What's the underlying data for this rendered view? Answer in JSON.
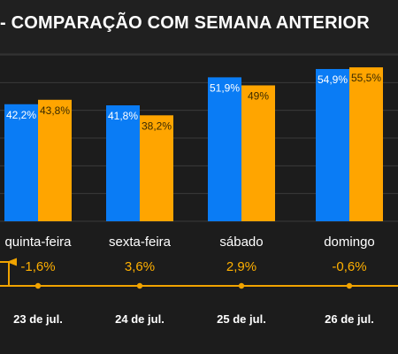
{
  "header": {
    "title": "- COMPARAÇÃO COM SEMANA ANTERIOR"
  },
  "colors": {
    "background": "#1c1c1c",
    "current_week": "#0a7cf5",
    "previous_week": "#ffa500",
    "gridline": "#3a3a3a",
    "variation_line": "#f0a300",
    "text": "#ffffff",
    "variation_text": "#ffb000"
  },
  "chart_data": {
    "type": "bar",
    "title": "- COMPARAÇÃO COM SEMANA ANTERIOR",
    "categories": [
      "quinta-feira",
      "sexta-feira",
      "sábado",
      "domingo"
    ],
    "series": [
      {
        "values": [
          42.2,
          41.8,
          51.9,
          54.9
        ],
        "labels": [
          "42,2%",
          "41,8%",
          "51,9%",
          "54,9%"
        ],
        "color": "#0a7cf5"
      },
      {
        "values": [
          43.8,
          38.2,
          49,
          55.5
        ],
        "labels": [
          "43,8%",
          "38,2%",
          "49%",
          "55,5%"
        ],
        "color": "#ffa500"
      }
    ],
    "variation": {
      "labels": [
        "-1,6%",
        "3,6%",
        "2,9%",
        "-0,6%"
      ],
      "values": [
        -1.6,
        3.6,
        2.9,
        -0.6
      ]
    },
    "dates": [
      "23 de jul.",
      "24 de jul.",
      "25 de jul.",
      "26 de jul."
    ],
    "ylim": [
      0,
      60
    ],
    "grid": true,
    "legend": "none",
    "ylabel": "",
    "xlabel": ""
  }
}
